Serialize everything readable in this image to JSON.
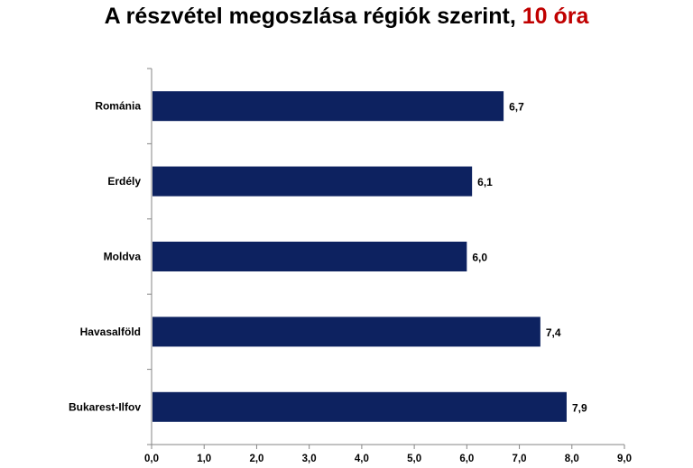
{
  "chart_data": {
    "type": "bar",
    "orientation": "horizontal",
    "title": "A részvétel megoszlása régiók szerint,",
    "title_accent": "10 óra",
    "categories": [
      "Románia",
      "Erdély",
      "Moldva",
      "Havasalföld",
      "Bukarest-Ilfov"
    ],
    "values": [
      6.7,
      6.1,
      6.0,
      7.4,
      7.9
    ],
    "value_labels": [
      "6,7",
      "6,1",
      "6,0",
      "7,4",
      "7,9"
    ],
    "xlim": [
      0,
      9
    ],
    "x_ticks": [
      "0,0",
      "1,0",
      "2,0",
      "3,0",
      "4,0",
      "5,0",
      "6,0",
      "7,0",
      "8,0",
      "9,0"
    ],
    "bar_color": "#0d2260",
    "accent_color": "#c00000",
    "grid": false,
    "legend": "none"
  }
}
